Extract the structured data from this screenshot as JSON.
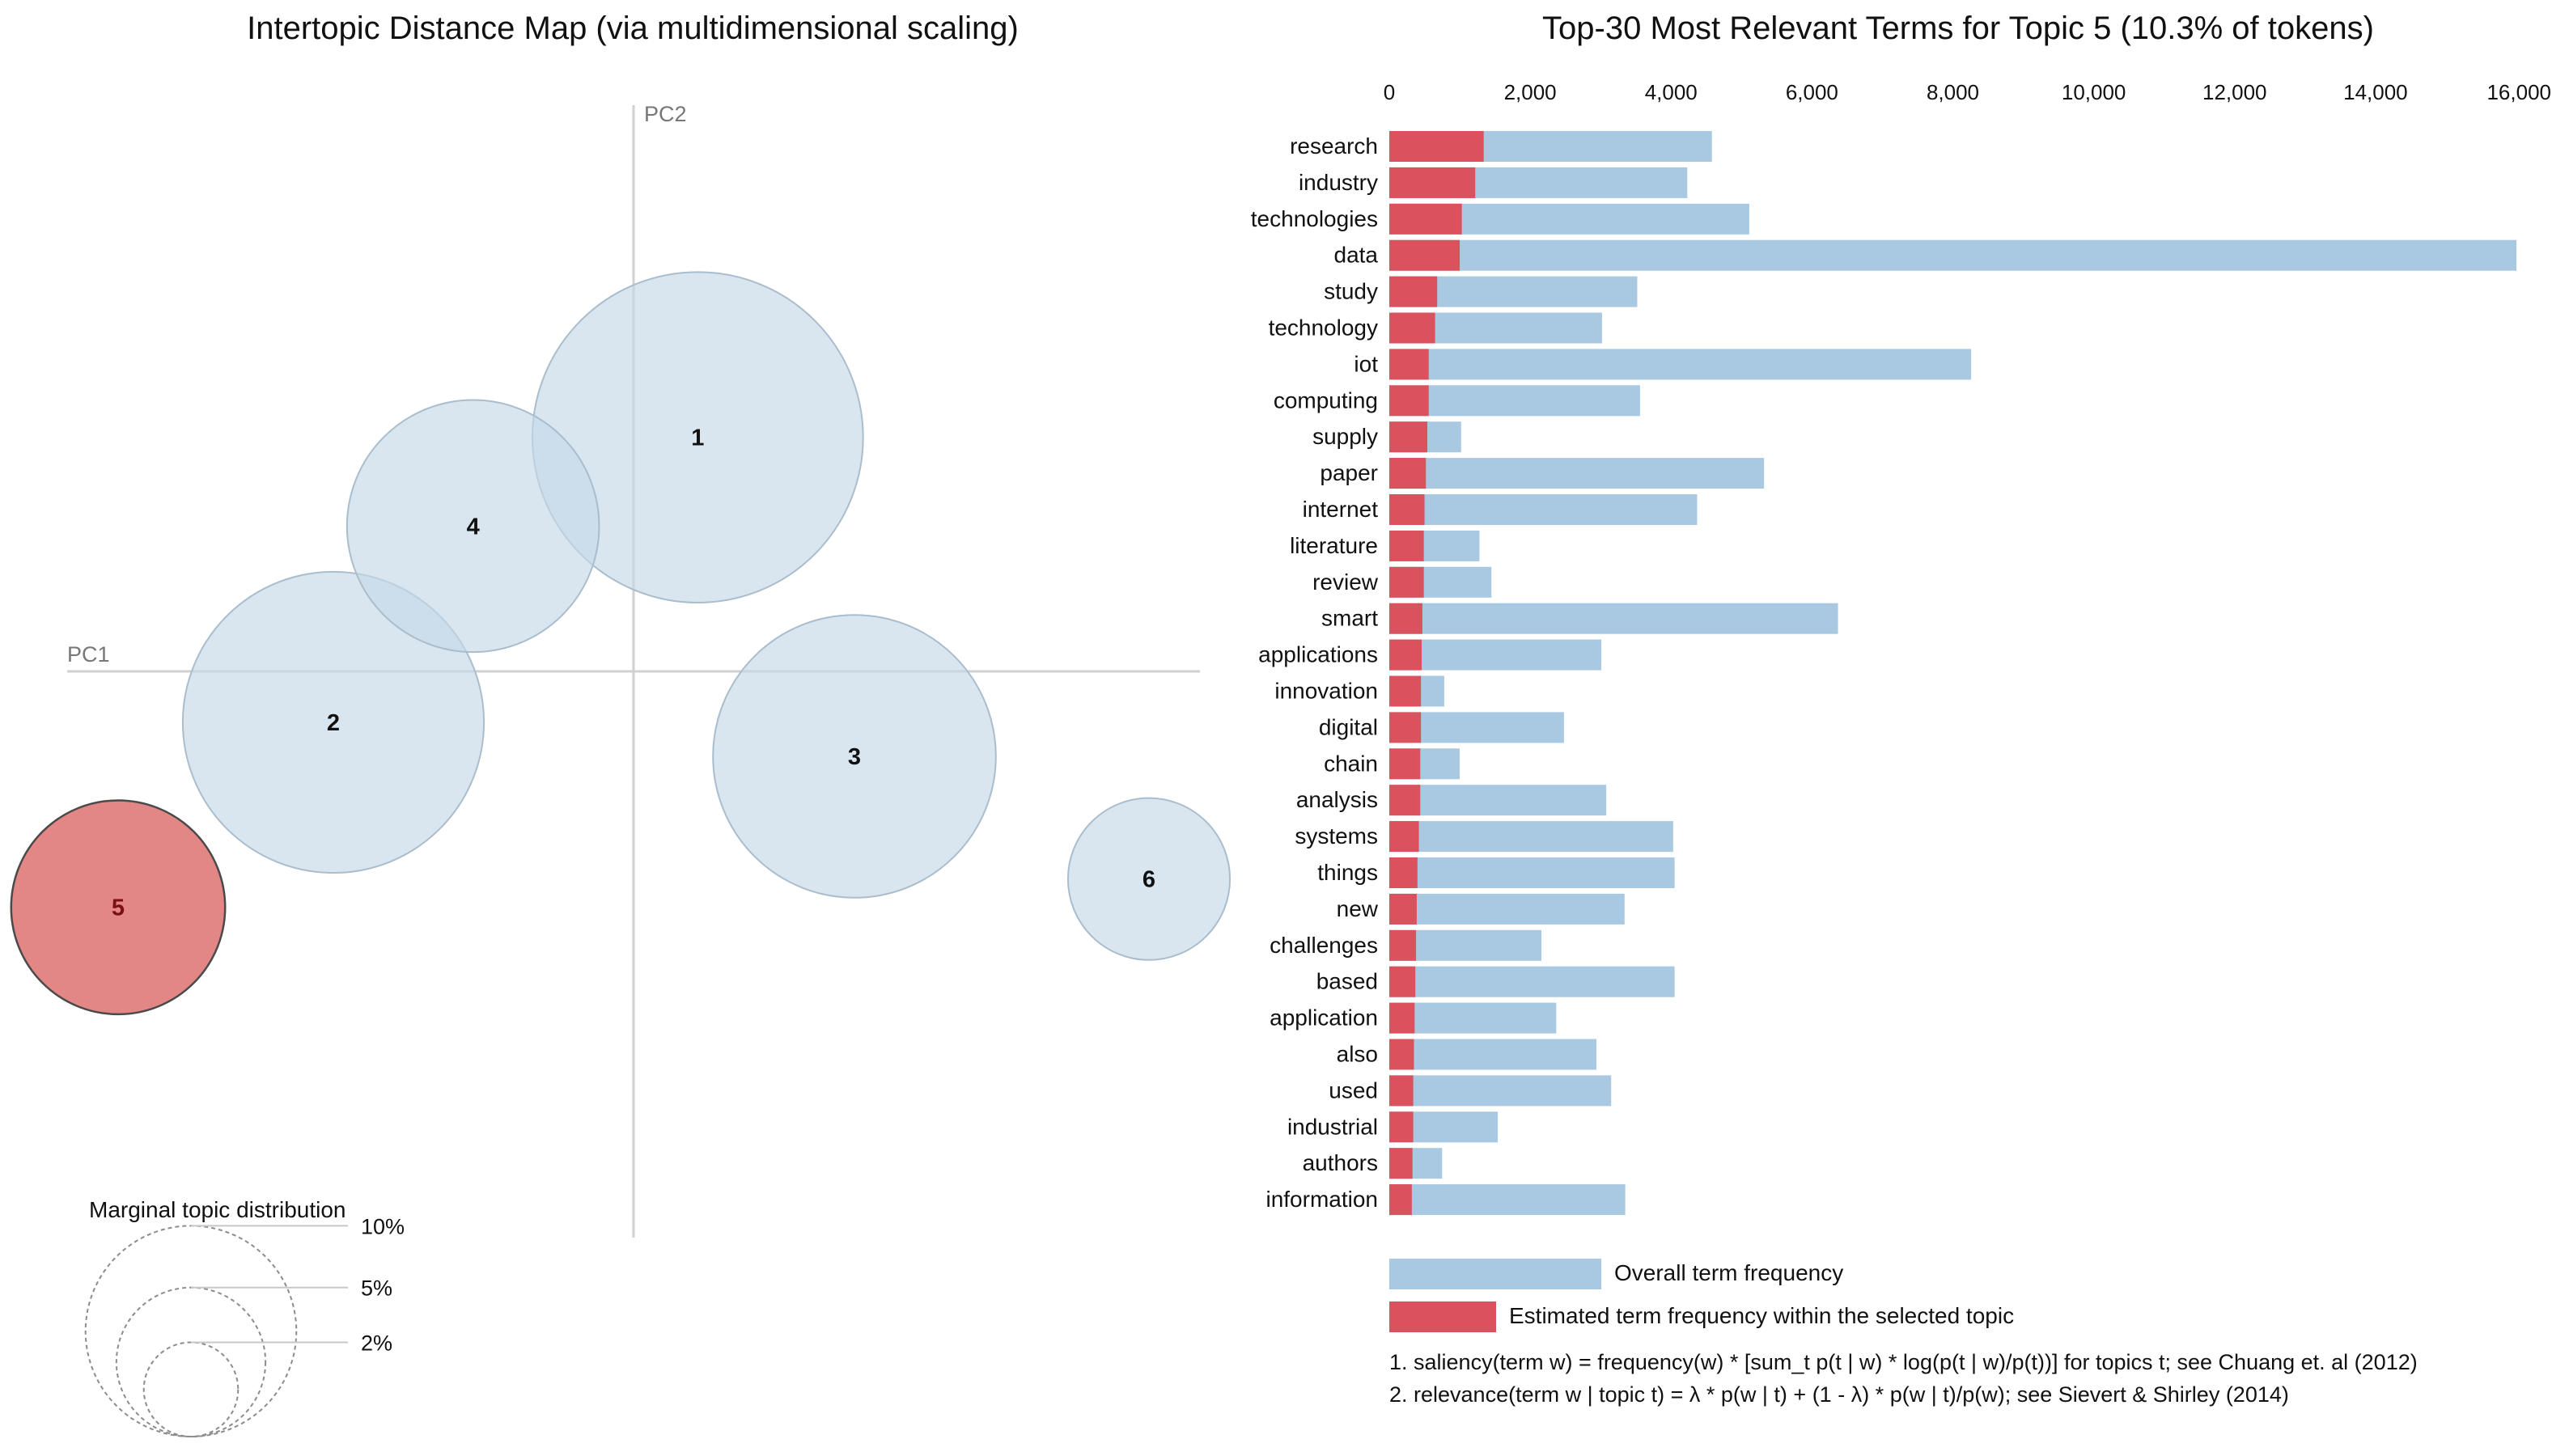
{
  "left_panel": {
    "title": "Intertopic Distance Map (via multidimensional scaling)",
    "pc1_label": "PC1",
    "pc2_label": "PC2",
    "marginal": {
      "title": "Marginal topic distribution",
      "legend": [
        {
          "label": "2%",
          "value": 2
        },
        {
          "label": "5%",
          "value": 5
        },
        {
          "label": "10%",
          "value": 10
        }
      ]
    }
  },
  "right_panel": {
    "title": "Top-30 Most Relevant Terms for Topic 5 (10.3% of tokens)",
    "legend": {
      "overall": "Overall term frequency",
      "estimated": "Estimated term frequency within the selected topic"
    },
    "footnotes": [
      "1. saliency(term w) = frequency(w) * [sum_t p(t | w) * log(p(t | w)/p(t))] for topics t; see Chuang et. al (2012)",
      "2. relevance(term w | topic t) = λ * p(w | t) + (1 - λ) * p(w | t)/p(w); see Sievert & Shirley (2014)"
    ]
  },
  "colors": {
    "overall_bar": "#a9c9e2",
    "topic_bar": "#d9525d",
    "bubble_fill": "#c4d8e8",
    "bubble_stroke": "#aabdcc",
    "selected_fill": "#e07f80",
    "selected_stroke": "#4a4a4a",
    "axis": "#cfcfcf"
  },
  "chart_data": [
    {
      "type": "scatter",
      "title": "Intertopic Distance Map (via multidimensional scaling)",
      "xlabel": "PC1",
      "ylabel": "PC2",
      "xlim": [
        -0.3,
        0.3
      ],
      "ylim": [
        -0.3,
        0.3
      ],
      "selected_topic": 5,
      "topics": [
        {
          "id": 1,
          "label": "1",
          "x": 0.034,
          "y": 0.124,
          "share": 24.6
        },
        {
          "id": 2,
          "label": "2",
          "x": -0.159,
          "y": -0.027,
          "share": 20.4
        },
        {
          "id": 3,
          "label": "3",
          "x": 0.117,
          "y": -0.045,
          "share": 18.0
        },
        {
          "id": 4,
          "label": "4",
          "x": -0.085,
          "y": 0.077,
          "share": 14.3
        },
        {
          "id": 5,
          "label": "5",
          "x": -0.273,
          "y": -0.125,
          "share": 10.3
        },
        {
          "id": 6,
          "label": "6",
          "x": 0.273,
          "y": -0.11,
          "share": 5.9
        }
      ]
    },
    {
      "type": "bar",
      "orientation": "horizontal",
      "title": "Top-30 Most Relevant Terms for Topic 5 (10.3% of tokens)",
      "xlim": [
        0,
        16000
      ],
      "xticks": [
        0,
        2000,
        4000,
        6000,
        8000,
        10000,
        12000,
        14000,
        16000
      ],
      "xtick_labels": [
        "0",
        "2,000",
        "4,000",
        "6,000",
        "8,000",
        "10,000",
        "12,000",
        "14,000",
        "16,000"
      ],
      "categories": [
        "research",
        "industry",
        "technologies",
        "data",
        "study",
        "technology",
        "iot",
        "computing",
        "supply",
        "paper",
        "internet",
        "literature",
        "review",
        "smart",
        "applications",
        "innovation",
        "digital",
        "chain",
        "analysis",
        "systems",
        "things",
        "new",
        "challenges",
        "based",
        "application",
        "also",
        "used",
        "industrial",
        "authors",
        "information"
      ],
      "series": [
        {
          "name": "Overall term frequency",
          "values": [
            4580,
            4230,
            5110,
            16000,
            3520,
            3020,
            8260,
            3560,
            1020,
            5320,
            4370,
            1280,
            1450,
            6370,
            3010,
            780,
            2480,
            1000,
            3080,
            4030,
            4050,
            3340,
            2160,
            4050,
            2370,
            2940,
            3150,
            1540,
            750,
            3350
          ]
        },
        {
          "name": "Estimated term frequency within the selected topic",
          "values": [
            1340,
            1220,
            1030,
            1000,
            680,
            650,
            560,
            560,
            540,
            520,
            500,
            490,
            490,
            470,
            460,
            450,
            450,
            440,
            440,
            420,
            400,
            390,
            380,
            370,
            360,
            350,
            340,
            340,
            330,
            320
          ]
        }
      ]
    }
  ]
}
